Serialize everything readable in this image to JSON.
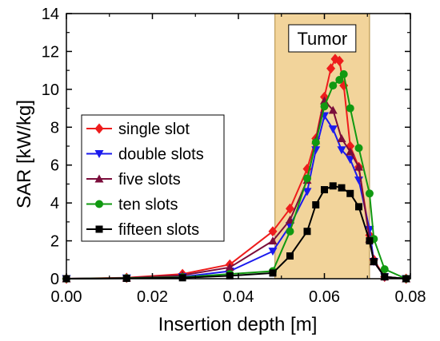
{
  "chart_data": {
    "type": "line",
    "xlabel": "Insertion depth [m]",
    "ylabel": "SAR [kW/kg]",
    "xlim": [
      0,
      0.08
    ],
    "ylim": [
      0,
      14
    ],
    "xticks": [
      0.0,
      0.02,
      0.04,
      0.06,
      0.08
    ],
    "xtick_labels": [
      "0.00",
      "0.02",
      "0.04",
      "0.06",
      "0.08"
    ],
    "yticks": [
      0,
      2,
      4,
      6,
      8,
      10,
      12,
      14
    ],
    "ytick_labels": [
      "0",
      "2",
      "4",
      "6",
      "8",
      "10",
      "12",
      "14"
    ],
    "grid": false,
    "legend_position": "center-left",
    "annotation": {
      "text": "Tumor",
      "region_x": [
        0.0485,
        0.0705
      ],
      "color": "#f2d49b"
    },
    "series": [
      {
        "name": "single slot",
        "color": "#ee1c1c",
        "marker": "diamond",
        "x": [
          0.0,
          0.014,
          0.027,
          0.038,
          0.048,
          0.052,
          0.056,
          0.058,
          0.06,
          0.0615,
          0.0625,
          0.0635,
          0.0645,
          0.066,
          0.068,
          0.0705,
          0.0715,
          0.074,
          0.079
        ],
        "y": [
          0.0,
          0.05,
          0.25,
          0.75,
          2.5,
          3.7,
          5.8,
          7.4,
          9.6,
          11.1,
          11.6,
          11.5,
          10.2,
          7.0,
          5.9,
          2.3,
          1.0,
          0.1,
          0.0
        ]
      },
      {
        "name": "double slots",
        "color": "#1a1aee",
        "marker": "triangle-down",
        "x": [
          0.0,
          0.014,
          0.027,
          0.038,
          0.048,
          0.052,
          0.056,
          0.058,
          0.06,
          0.062,
          0.064,
          0.066,
          0.068,
          0.0705,
          0.0715,
          0.074,
          0.079
        ],
        "y": [
          0.0,
          0.03,
          0.1,
          0.4,
          1.45,
          2.8,
          4.6,
          6.8,
          8.6,
          7.9,
          6.8,
          6.3,
          5.2,
          2.6,
          0.9,
          0.1,
          0.0
        ]
      },
      {
        "name": "five slots",
        "color": "#7b0d3b",
        "marker": "triangle-up",
        "x": [
          0.0,
          0.014,
          0.027,
          0.038,
          0.048,
          0.052,
          0.056,
          0.058,
          0.06,
          0.062,
          0.064,
          0.066,
          0.068,
          0.0705,
          0.0715,
          0.074,
          0.079
        ],
        "y": [
          0.0,
          0.04,
          0.18,
          0.6,
          2.0,
          3.1,
          5.2,
          7.3,
          9.4,
          8.9,
          7.4,
          6.7,
          5.9,
          2.1,
          0.9,
          0.1,
          0.0
        ]
      },
      {
        "name": "ten slots",
        "color": "#119911",
        "marker": "circle",
        "x": [
          0.0,
          0.014,
          0.027,
          0.038,
          0.048,
          0.052,
          0.056,
          0.058,
          0.06,
          0.062,
          0.0635,
          0.0645,
          0.066,
          0.068,
          0.0705,
          0.0715,
          0.074,
          0.079
        ],
        "y": [
          0.0,
          0.03,
          0.08,
          0.25,
          0.4,
          2.5,
          5.3,
          7.2,
          9.1,
          10.2,
          10.5,
          10.8,
          9.0,
          6.9,
          4.5,
          2.1,
          0.5,
          0.0
        ]
      },
      {
        "name": "fifteen slots",
        "color": "#000000",
        "marker": "square",
        "x": [
          0.0,
          0.014,
          0.027,
          0.038,
          0.048,
          0.052,
          0.056,
          0.058,
          0.06,
          0.062,
          0.064,
          0.066,
          0.068,
          0.0705,
          0.0715,
          0.074,
          0.079
        ],
        "y": [
          0.0,
          0.02,
          0.05,
          0.15,
          0.3,
          1.2,
          2.5,
          3.9,
          4.7,
          4.9,
          4.8,
          4.5,
          3.8,
          2.0,
          0.9,
          0.1,
          0.0
        ]
      }
    ]
  }
}
